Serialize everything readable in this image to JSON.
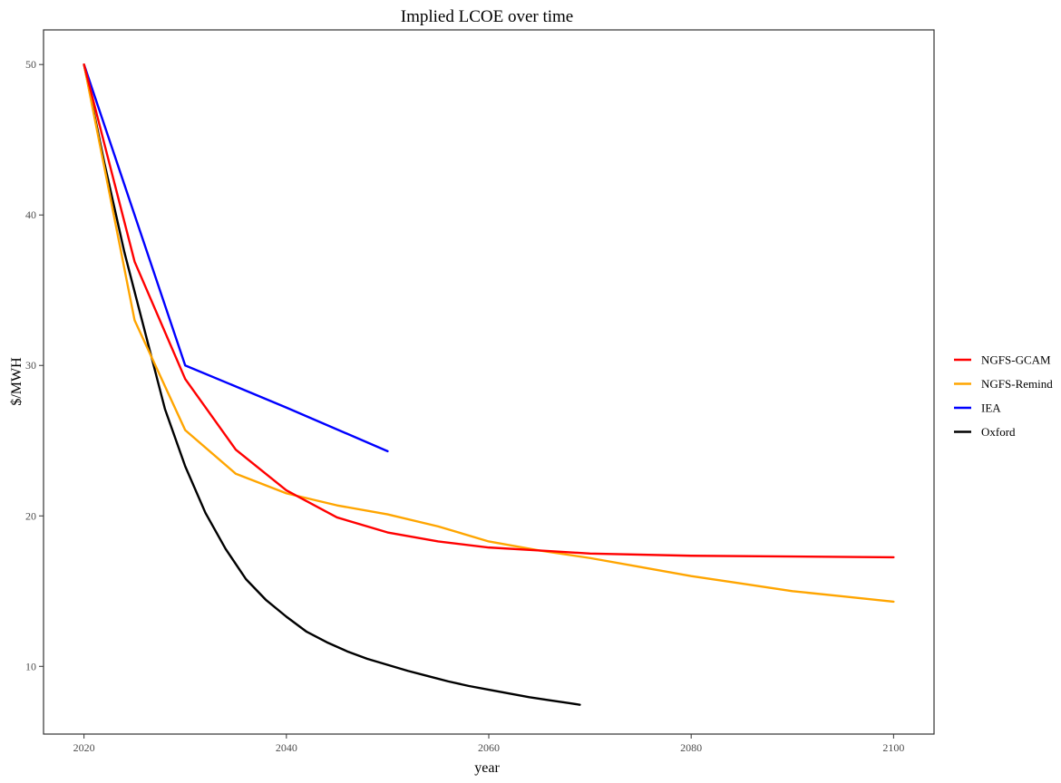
{
  "chart_data": {
    "type": "line",
    "title": "Implied LCOE over time",
    "xlabel": "year",
    "ylabel": "$/MWH",
    "xlim": [
      2016,
      2104
    ],
    "ylim": [
      5.5,
      52.3
    ],
    "xticks": [
      2020,
      2040,
      2060,
      2080,
      2100
    ],
    "yticks": [
      10,
      20,
      30,
      40,
      50
    ],
    "grid": false,
    "legend_position": "right",
    "series": [
      {
        "name": "NGFS-GCAM",
        "color": "#ff0000",
        "x": [
          2020,
          2025,
          2030,
          2035,
          2040,
          2045,
          2050,
          2055,
          2060,
          2065,
          2070,
          2080,
          2090,
          2100
        ],
        "y": [
          50,
          36.9,
          29.1,
          24.4,
          21.7,
          19.9,
          18.9,
          18.3,
          17.9,
          17.7,
          17.5,
          17.35,
          17.3,
          17.25
        ]
      },
      {
        "name": "NGFS-Remind",
        "color": "#ffa500",
        "x": [
          2020,
          2025,
          2030,
          2035,
          2040,
          2045,
          2050,
          2055,
          2060,
          2065,
          2070,
          2075,
          2080,
          2085,
          2090,
          2095,
          2100
        ],
        "y": [
          50,
          33.0,
          25.7,
          22.8,
          21.5,
          20.7,
          20.1,
          19.3,
          18.3,
          17.7,
          17.2,
          16.6,
          16.0,
          15.5,
          15.0,
          14.65,
          14.3
        ]
      },
      {
        "name": "IEA",
        "color": "#0000ff",
        "x": [
          2020,
          2030,
          2040,
          2050
        ],
        "y": [
          50,
          30.0,
          27.2,
          24.3
        ]
      },
      {
        "name": "Oxford",
        "color": "#000000",
        "x": [
          2020,
          2022,
          2024,
          2026,
          2028,
          2030,
          2032,
          2034,
          2036,
          2038,
          2040,
          2042,
          2044,
          2046,
          2048,
          2050,
          2052,
          2054,
          2056,
          2058,
          2060,
          2062,
          2064,
          2066,
          2068,
          2069
        ],
        "y": [
          50,
          43.5,
          37.5,
          32.3,
          27.1,
          23.3,
          20.2,
          17.8,
          15.8,
          14.4,
          13.3,
          12.3,
          11.6,
          11.0,
          10.5,
          10.1,
          9.7,
          9.35,
          9.0,
          8.7,
          8.45,
          8.2,
          7.95,
          7.75,
          7.55,
          7.45
        ]
      }
    ]
  }
}
